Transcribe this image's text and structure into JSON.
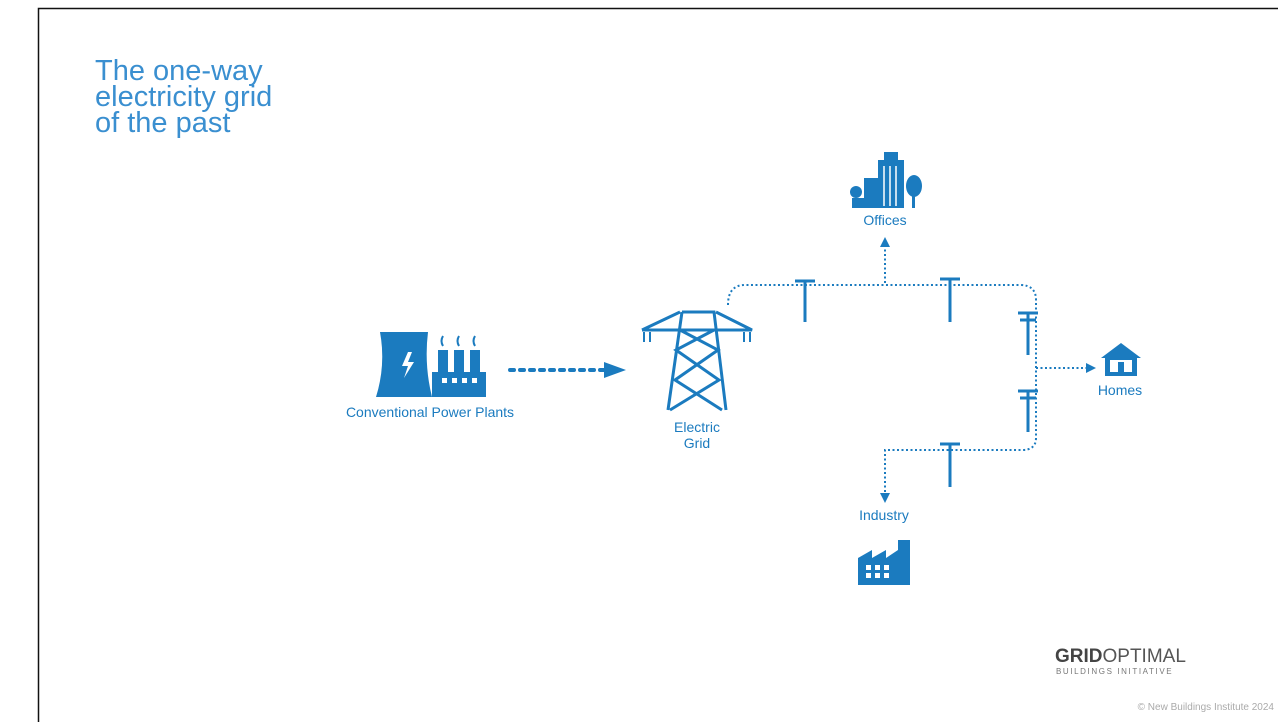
{
  "title_lines": [
    "The one-way",
    "electricity grid",
    "of the past"
  ],
  "nodes": [
    {
      "label": [
        "Conventional Power Plants"
      ]
    },
    {
      "label": [
        "Electric",
        "Grid"
      ]
    },
    {
      "label": [
        "Offices"
      ]
    },
    {
      "label": [
        "Homes"
      ]
    },
    {
      "label": [
        "Industry"
      ]
    }
  ],
  "logo": {
    "bold": "GRID",
    "light": "OPTIMAL",
    "sub": "BUILDINGS INITIATIVE"
  },
  "footer": "© New Buildings Institute 2024"
}
